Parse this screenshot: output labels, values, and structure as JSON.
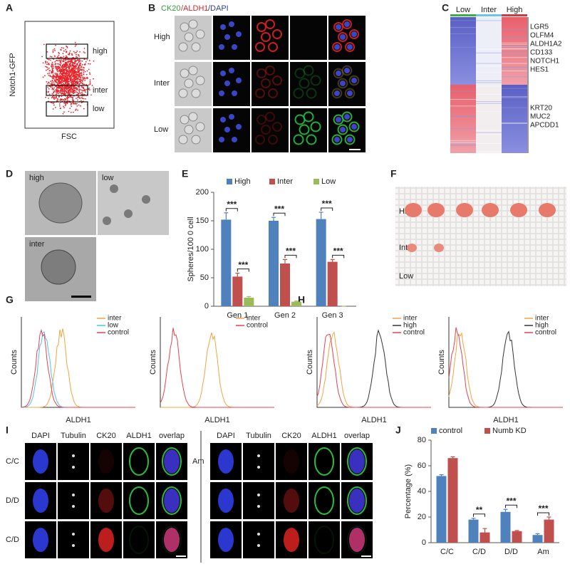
{
  "panel_labels": [
    "A",
    "B",
    "C",
    "D",
    "E",
    "F",
    "G",
    "H",
    "I",
    "J"
  ],
  "flow": {
    "ylabel": "Notch1-GFP",
    "xlabel": "FSC",
    "gates": [
      "high",
      "inter",
      "low"
    ]
  },
  "staining": {
    "title_parts": [
      "CK20",
      "/ALDH1",
      "/DAPI"
    ],
    "rows": [
      "High",
      "Inter",
      "Low"
    ]
  },
  "heatmap": {
    "columns": [
      "Low",
      "Inter",
      "High"
    ],
    "genes_up": [
      "LGR5",
      "OLFM4",
      "ALDH1A2",
      "CD133",
      "NOTCH1",
      "HES1"
    ],
    "genes_down": [
      "KRT20",
      "MUC2",
      "APCDD1"
    ]
  },
  "spheres": {
    "labels": [
      "high",
      "low",
      "inter"
    ]
  },
  "xenograft": {
    "rows": [
      "High",
      "Inter",
      "Low"
    ]
  },
  "facs": [
    {
      "legend": [
        "inter",
        "low",
        "control"
      ],
      "ylabel": "Counts",
      "xlabel": "ALDH1"
    },
    {
      "legend": [
        "inter",
        "control"
      ],
      "ylabel": "Counts",
      "xlabel": "ALDH1"
    },
    {
      "legend": [
        "inter",
        "high",
        "control"
      ],
      "ylabel": "Counts",
      "xlabel": "ALDH1"
    },
    {
      "legend": [
        "inter",
        "high",
        "control"
      ],
      "ylabel": "Counts",
      "xlabel": "ALDH1"
    }
  ],
  "division": {
    "columns": [
      "DAPI",
      "Tubulin",
      "CK20",
      "ALDH1",
      "overlap"
    ],
    "left_rows": [
      "C/C",
      "D/D",
      "C/D"
    ],
    "right_rows": [
      "Am"
    ]
  },
  "chart_data": [
    {
      "type": "bar",
      "ylabel": "Spheres/100 0 cell",
      "categories": [
        "Gen 1",
        "Gen 2",
        "Gen 3"
      ],
      "series": [
        {
          "name": "High",
          "color": "#4f81bd",
          "values": [
            152,
            150,
            153
          ],
          "errors": [
            12,
            6,
            12
          ]
        },
        {
          "name": "Inter",
          "color": "#c0504d",
          "values": [
            52,
            75,
            78
          ],
          "errors": [
            6,
            7,
            4
          ]
        },
        {
          "name": "Low",
          "color": "#9bbb59",
          "values": [
            15,
            8,
            0
          ],
          "errors": [
            2,
            1,
            0
          ]
        }
      ],
      "ylim": [
        0,
        200
      ],
      "yticks": [
        0,
        50,
        100,
        150,
        200
      ],
      "annotations": [
        "***",
        "***",
        "***",
        "***",
        "***",
        "***"
      ]
    },
    {
      "type": "bar",
      "ylabel": "Percentage (%)",
      "categories": [
        "C/C",
        "C/D",
        "D/D",
        "Am"
      ],
      "series": [
        {
          "name": "control",
          "color": "#4f81bd",
          "values": [
            52,
            18,
            24,
            6
          ],
          "errors": [
            1,
            1,
            2,
            1
          ]
        },
        {
          "name": "Numb KD",
          "color": "#c0504d",
          "values": [
            66,
            8,
            9,
            18
          ],
          "errors": [
            1,
            3,
            0.5,
            2
          ]
        }
      ],
      "ylim": [
        0,
        80
      ],
      "yticks": [
        0,
        20,
        40,
        60,
        80
      ],
      "annotations": [
        "**",
        "***",
        "***"
      ]
    }
  ]
}
